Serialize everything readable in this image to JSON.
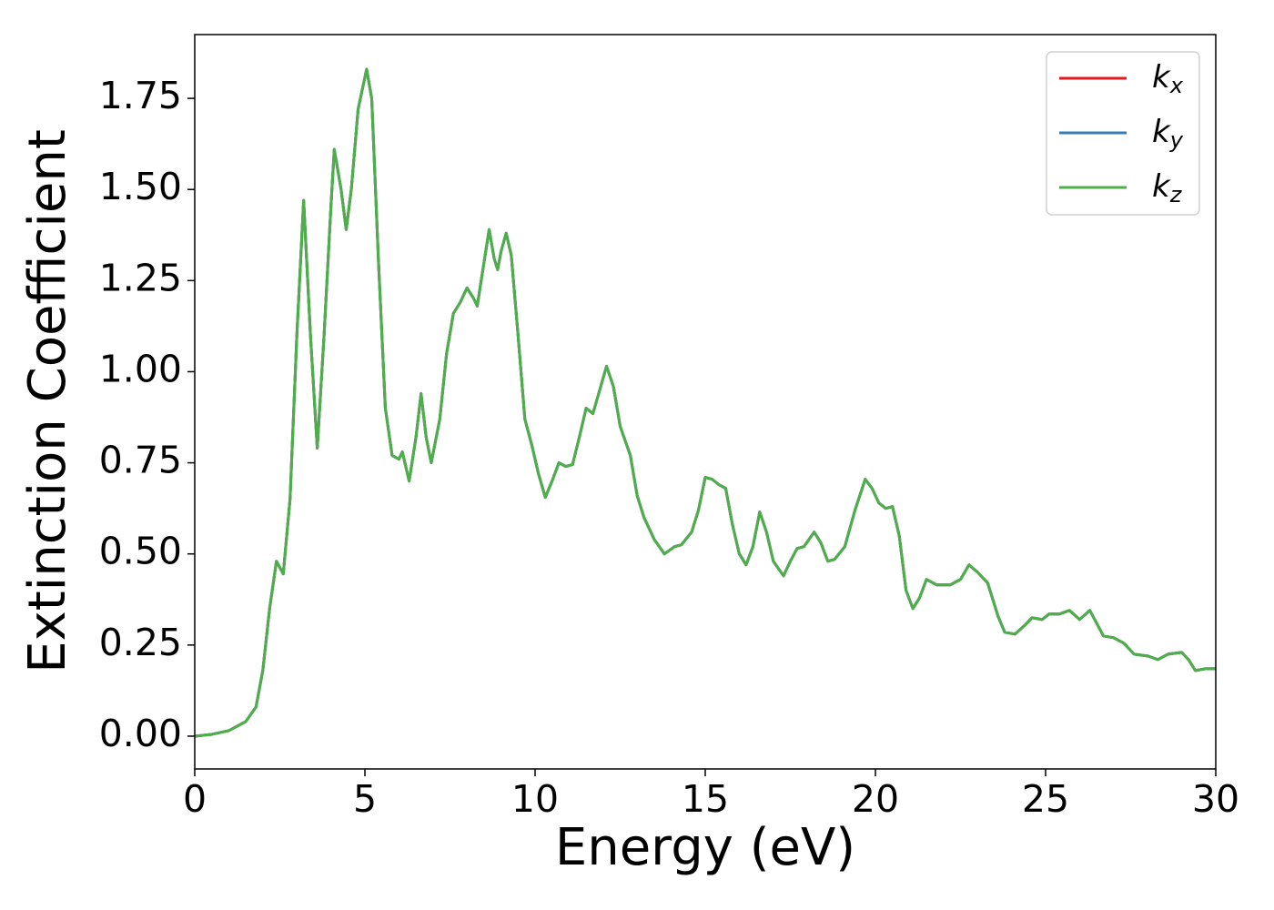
{
  "chart_data": {
    "type": "line",
    "xlabel": "Energy (eV)",
    "ylabel": "Extinction Coefficient",
    "x": [
      0,
      0.5,
      1,
      1.5,
      1.8,
      2.0,
      2.2,
      2.4,
      2.6,
      2.8,
      3.0,
      3.2,
      3.4,
      3.6,
      3.8,
      4.0,
      4.1,
      4.3,
      4.45,
      4.6,
      4.8,
      5.05,
      5.2,
      5.4,
      5.6,
      5.8,
      6.0,
      6.1,
      6.3,
      6.5,
      6.65,
      6.8,
      6.95,
      7.2,
      7.4,
      7.6,
      7.8,
      8.0,
      8.2,
      8.3,
      8.5,
      8.65,
      8.8,
      8.9,
      9.0,
      9.15,
      9.3,
      9.5,
      9.7,
      9.9,
      10.1,
      10.3,
      10.5,
      10.7,
      10.9,
      11.1,
      11.3,
      11.5,
      11.7,
      11.9,
      12.1,
      12.3,
      12.5,
      12.8,
      13.0,
      13.2,
      13.5,
      13.8,
      14.1,
      14.3,
      14.6,
      14.8,
      15.0,
      15.2,
      15.4,
      15.6,
      15.8,
      16.0,
      16.2,
      16.4,
      16.6,
      16.8,
      17.0,
      17.3,
      17.5,
      17.7,
      17.9,
      18.2,
      18.4,
      18.6,
      18.8,
      19.1,
      19.4,
      19.7,
      19.9,
      20.1,
      20.3,
      20.5,
      20.7,
      20.9,
      21.1,
      21.3,
      21.5,
      21.8,
      22.2,
      22.5,
      22.75,
      23.0,
      23.3,
      23.6,
      23.8,
      24.1,
      24.4,
      24.6,
      24.9,
      25.1,
      25.4,
      25.7,
      26.0,
      26.3,
      26.5,
      26.7,
      27.0,
      27.3,
      27.6,
      28.0,
      28.3,
      28.6,
      29.0,
      29.2,
      29.4,
      29.7,
      30.0
    ],
    "series": [
      {
        "name": "kx",
        "color": "#e41a1c",
        "values": [
          0,
          0.005,
          0.015,
          0.04,
          0.08,
          0.18,
          0.35,
          0.48,
          0.445,
          0.65,
          1.1,
          1.47,
          1.1,
          0.79,
          1.1,
          1.45,
          1.61,
          1.5,
          1.39,
          1.5,
          1.72,
          1.83,
          1.75,
          1.3,
          0.9,
          0.77,
          0.76,
          0.78,
          0.7,
          0.82,
          0.94,
          0.82,
          0.75,
          0.87,
          1.05,
          1.16,
          1.19,
          1.23,
          1.2,
          1.18,
          1.3,
          1.39,
          1.31,
          1.28,
          1.33,
          1.38,
          1.32,
          1.1,
          0.87,
          0.8,
          0.72,
          0.655,
          0.7,
          0.75,
          0.74,
          0.745,
          0.82,
          0.9,
          0.885,
          0.95,
          1.015,
          0.96,
          0.85,
          0.77,
          0.66,
          0.6,
          0.54,
          0.5,
          0.52,
          0.525,
          0.56,
          0.62,
          0.71,
          0.705,
          0.69,
          0.68,
          0.58,
          0.5,
          0.47,
          0.52,
          0.615,
          0.56,
          0.48,
          0.44,
          0.48,
          0.515,
          0.52,
          0.56,
          0.53,
          0.48,
          0.485,
          0.52,
          0.62,
          0.705,
          0.68,
          0.64,
          0.625,
          0.63,
          0.55,
          0.4,
          0.35,
          0.38,
          0.43,
          0.415,
          0.415,
          0.43,
          0.47,
          0.45,
          0.42,
          0.33,
          0.285,
          0.28,
          0.305,
          0.325,
          0.32,
          0.335,
          0.335,
          0.345,
          0.32,
          0.345,
          0.31,
          0.275,
          0.27,
          0.255,
          0.225,
          0.22,
          0.21,
          0.225,
          0.23,
          0.21,
          0.18,
          0.185,
          0.185
        ]
      },
      {
        "name": "ky",
        "color": "#377eb8",
        "values": [
          0,
          0.005,
          0.015,
          0.04,
          0.08,
          0.18,
          0.35,
          0.48,
          0.445,
          0.65,
          1.1,
          1.47,
          1.1,
          0.79,
          1.1,
          1.45,
          1.61,
          1.5,
          1.39,
          1.5,
          1.72,
          1.83,
          1.75,
          1.3,
          0.9,
          0.77,
          0.76,
          0.78,
          0.7,
          0.82,
          0.94,
          0.82,
          0.75,
          0.87,
          1.05,
          1.16,
          1.19,
          1.23,
          1.2,
          1.18,
          1.3,
          1.39,
          1.31,
          1.28,
          1.33,
          1.38,
          1.32,
          1.1,
          0.87,
          0.8,
          0.72,
          0.655,
          0.7,
          0.75,
          0.74,
          0.745,
          0.82,
          0.9,
          0.885,
          0.95,
          1.015,
          0.96,
          0.85,
          0.77,
          0.66,
          0.6,
          0.54,
          0.5,
          0.52,
          0.525,
          0.56,
          0.62,
          0.71,
          0.705,
          0.69,
          0.68,
          0.58,
          0.5,
          0.47,
          0.52,
          0.615,
          0.56,
          0.48,
          0.44,
          0.48,
          0.515,
          0.52,
          0.56,
          0.53,
          0.48,
          0.485,
          0.52,
          0.62,
          0.705,
          0.68,
          0.64,
          0.625,
          0.63,
          0.55,
          0.4,
          0.35,
          0.38,
          0.43,
          0.415,
          0.415,
          0.43,
          0.47,
          0.45,
          0.42,
          0.33,
          0.285,
          0.28,
          0.305,
          0.325,
          0.32,
          0.335,
          0.335,
          0.345,
          0.32,
          0.345,
          0.31,
          0.275,
          0.27,
          0.255,
          0.225,
          0.22,
          0.21,
          0.225,
          0.23,
          0.21,
          0.18,
          0.185,
          0.185
        ]
      },
      {
        "name": "kz",
        "color": "#4daf4a",
        "values": [
          0,
          0.005,
          0.015,
          0.04,
          0.08,
          0.18,
          0.35,
          0.48,
          0.445,
          0.65,
          1.1,
          1.47,
          1.1,
          0.79,
          1.1,
          1.45,
          1.61,
          1.5,
          1.39,
          1.5,
          1.72,
          1.83,
          1.75,
          1.3,
          0.9,
          0.77,
          0.76,
          0.78,
          0.7,
          0.82,
          0.94,
          0.82,
          0.75,
          0.87,
          1.05,
          1.16,
          1.19,
          1.23,
          1.2,
          1.18,
          1.3,
          1.39,
          1.31,
          1.28,
          1.33,
          1.38,
          1.32,
          1.1,
          0.87,
          0.8,
          0.72,
          0.655,
          0.7,
          0.75,
          0.74,
          0.745,
          0.82,
          0.9,
          0.885,
          0.95,
          1.015,
          0.96,
          0.85,
          0.77,
          0.66,
          0.6,
          0.54,
          0.5,
          0.52,
          0.525,
          0.56,
          0.62,
          0.71,
          0.705,
          0.69,
          0.68,
          0.58,
          0.5,
          0.47,
          0.52,
          0.615,
          0.56,
          0.48,
          0.44,
          0.48,
          0.515,
          0.52,
          0.56,
          0.53,
          0.48,
          0.485,
          0.52,
          0.62,
          0.705,
          0.68,
          0.64,
          0.625,
          0.63,
          0.55,
          0.4,
          0.35,
          0.38,
          0.43,
          0.415,
          0.415,
          0.43,
          0.47,
          0.45,
          0.42,
          0.33,
          0.285,
          0.28,
          0.305,
          0.325,
          0.32,
          0.335,
          0.335,
          0.345,
          0.32,
          0.345,
          0.31,
          0.275,
          0.27,
          0.255,
          0.225,
          0.22,
          0.21,
          0.225,
          0.23,
          0.21,
          0.18,
          0.185,
          0.185
        ]
      }
    ],
    "xlim": [
      0,
      30
    ],
    "xticks": [
      0,
      5,
      10,
      15,
      20,
      25,
      30
    ],
    "ylim": [
      -0.09,
      1.925
    ],
    "yticks": [
      {
        "value": 0,
        "label": "0.00"
      },
      {
        "value": 0.25,
        "label": "0.25"
      },
      {
        "value": 0.5,
        "label": "0.50"
      },
      {
        "value": 0.75,
        "label": "0.75"
      },
      {
        "value": 1,
        "label": "1.00"
      },
      {
        "value": 1.25,
        "label": "1.25"
      },
      {
        "value": 1.5,
        "label": "1.50"
      },
      {
        "value": 1.75,
        "label": "1.75"
      }
    ],
    "grid": false,
    "legend": "upper right"
  }
}
